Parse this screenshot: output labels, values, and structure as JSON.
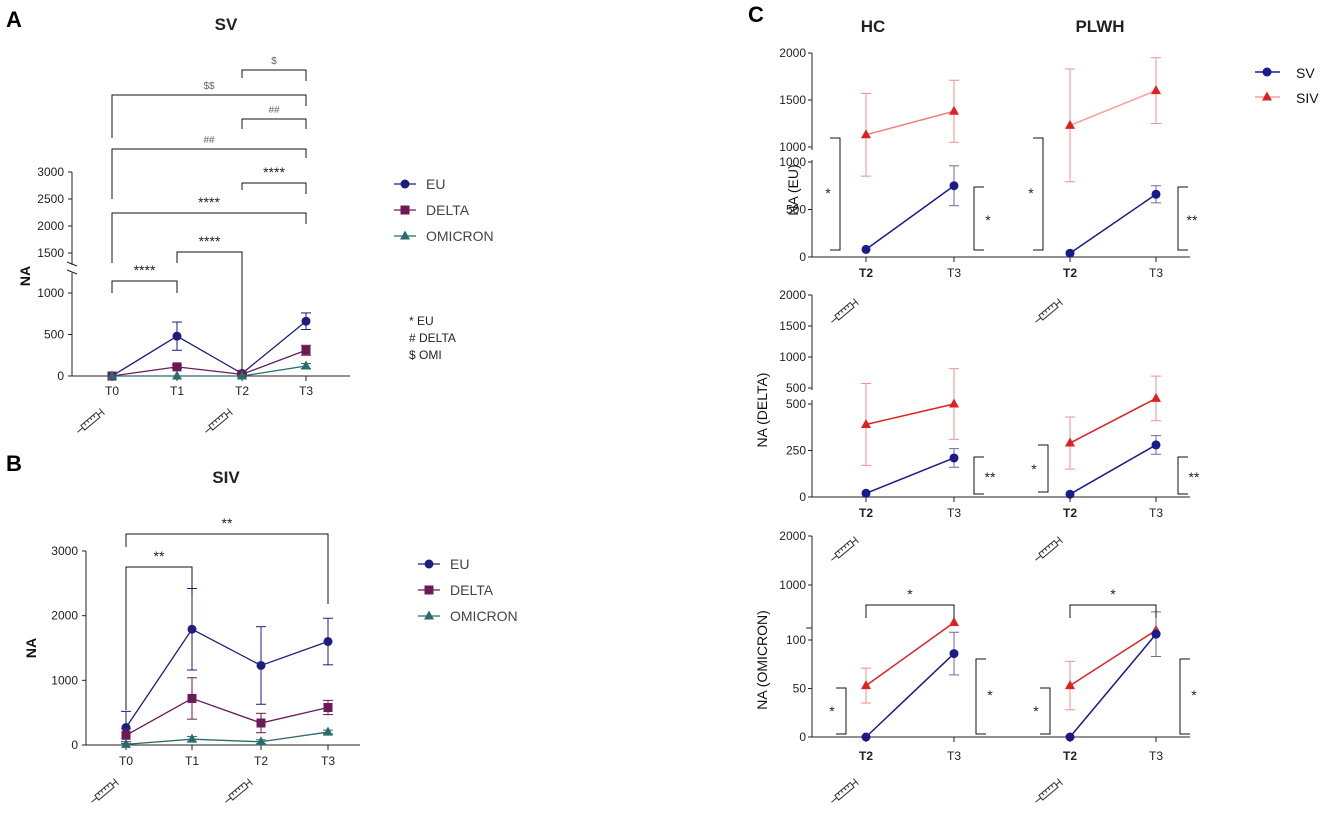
{
  "figure": {
    "panel_letters": [
      "A",
      "B",
      "C"
    ],
    "colors": {
      "eu": "#1e1e80",
      "delta": "#6b1a55",
      "omicron": "#2a6b6b",
      "sv": "#1a1a8c",
      "siv_hc": "#f08080",
      "siv_plwh_light": "#f4a0a0",
      "siv": "#e02020",
      "siv_bar": "#f09090"
    }
  },
  "chart_data": [
    {
      "id": "A",
      "type": "line",
      "title": "SV",
      "ylabel": "NA",
      "xlabel": "",
      "categories": [
        "T0",
        "T1",
        "T2",
        "T3"
      ],
      "vaccination_timepoints": [
        "T0",
        "T2"
      ],
      "y_broken_axis": true,
      "ylim_lower": [
        0,
        1200
      ],
      "ylim_upper": [
        1200,
        3000
      ],
      "yticks": [
        "0",
        "500",
        "1000",
        "1500",
        "2000",
        "2500",
        "3000"
      ],
      "series": [
        {
          "name": "EU",
          "marker": "circle",
          "values": [
            0,
            480,
            30,
            660
          ],
          "errors": [
            0,
            170,
            10,
            100
          ]
        },
        {
          "name": "DELTA",
          "marker": "square",
          "values": [
            0,
            110,
            20,
            310
          ],
          "errors": [
            0,
            20,
            8,
            60
          ]
        },
        {
          "name": "OMICRON",
          "marker": "triangle",
          "values": [
            0,
            0,
            0,
            120
          ],
          "errors": [
            0,
            0,
            0,
            30
          ]
        }
      ],
      "significance": [
        {
          "from": "T0",
          "to": "T1",
          "label": "****"
        },
        {
          "from": "T1",
          "to": "T2",
          "label": "****"
        },
        {
          "from": "T0",
          "to": "T3",
          "label": "****"
        },
        {
          "from": "T2",
          "to": "T3",
          "label": "****"
        },
        {
          "from": "T0",
          "to": "T3",
          "label": "##"
        },
        {
          "from": "T2",
          "to": "T3",
          "label": "##"
        },
        {
          "from": "T0",
          "to": "T3",
          "label": "$$"
        },
        {
          "from": "T2",
          "to": "T3",
          "label": "$"
        }
      ],
      "annotation_key": [
        "* EU",
        "# DELTA",
        "$ OMI"
      ]
    },
    {
      "id": "B",
      "type": "line",
      "title": "SIV",
      "ylabel": "NA",
      "xlabel": "",
      "categories": [
        "T0",
        "T1",
        "T2",
        "T3"
      ],
      "vaccination_timepoints": [
        "T0",
        "T2"
      ],
      "ylim": [
        0,
        3000
      ],
      "yticks": [
        "0",
        "1000",
        "2000",
        "3000"
      ],
      "series": [
        {
          "name": "EU",
          "marker": "circle",
          "values": [
            270,
            1790,
            1230,
            1600
          ],
          "errors": [
            250,
            630,
            600,
            360
          ]
        },
        {
          "name": "DELTA",
          "marker": "square",
          "values": [
            150,
            720,
            340,
            580
          ],
          "errors": [
            100,
            320,
            150,
            110
          ]
        },
        {
          "name": "OMICRON",
          "marker": "triangle",
          "values": [
            10,
            90,
            50,
            200
          ],
          "errors": [
            10,
            40,
            30,
            30
          ]
        }
      ],
      "significance": [
        {
          "from": "T0",
          "to": "T1",
          "label": "**"
        },
        {
          "from": "T0",
          "to": "T3",
          "label": "**"
        }
      ]
    },
    {
      "id": "C",
      "type": "line",
      "column_titles": [
        "HC",
        "PLWH"
      ],
      "legend": [
        "SV",
        "SIV"
      ],
      "categories": [
        "T2",
        "T3"
      ],
      "vaccination_timepoints": [
        "T2"
      ],
      "rows": [
        {
          "variant": "EU",
          "ylabel": "NA (EU)",
          "y_broken_axis": true,
          "yticks": [
            "0",
            "500",
            "1000",
            "1000",
            "1500",
            "2000"
          ],
          "panels": [
            {
              "group": "HC",
              "sv": [
                80,
                750
              ],
              "sv_err": [
                0,
                210
              ],
              "siv": [
                1130,
                1380
              ],
              "siv_err": [
                440,
                330
              ],
              "sig_sv_siv_T2": "*",
              "sig_sv_T2_T3": "*"
            },
            {
              "group": "PLWH",
              "sv": [
                40,
                660
              ],
              "sv_err": [
                0,
                90
              ],
              "siv": [
                1230,
                1600
              ],
              "siv_err": [
                600,
                350
              ],
              "sig_sv_siv_T2": "*",
              "sig_sv_T2_T3": "**"
            }
          ]
        },
        {
          "variant": "DELTA",
          "ylabel": "NA (DELTA)",
          "y_broken_axis": true,
          "yticks": [
            "0",
            "250",
            "500",
            "500",
            "1000",
            "1500",
            "2000"
          ],
          "panels": [
            {
              "group": "HC",
              "sv": [
                20,
                210
              ],
              "sv_err": [
                0,
                50
              ],
              "siv": [
                390,
                500
              ],
              "siv_err": [
                220,
                190
              ],
              "sig_sv_siv_T2": "",
              "sig_sv_T2_T3": "**"
            },
            {
              "group": "PLWH",
              "sv": [
                15,
                280
              ],
              "sv_err": [
                0,
                50
              ],
              "siv": [
                290,
                530
              ],
              "siv_err": [
                140,
                120
              ],
              "sig_sv_siv_T2": "*",
              "sig_sv_T2_T3": "**"
            }
          ]
        },
        {
          "variant": "OMICRON",
          "ylabel": "NA (OMICRON)",
          "y_broken_axis": true,
          "yticks": [
            "0",
            "50",
            "100",
            "1000",
            "2000"
          ],
          "panels": [
            {
              "group": "HC",
              "sv": [
                0,
                86
              ],
              "sv_err": [
                0,
                22
              ],
              "siv": [
                53,
                118
              ],
              "siv_err": [
                18,
                0
              ],
              "sig_sv_siv_T2": "*",
              "sig_siv_T2_T3": "*",
              "sig_sv_T2_T3": "*"
            },
            {
              "group": "PLWH",
              "sv": [
                0,
                106
              ],
              "sv_err": [
                0,
                23
              ],
              "siv": [
                53,
                110
              ],
              "siv_err": [
                25,
                0
              ],
              "sig_sv_siv_T2": "*",
              "sig_siv_T2_T3": "*",
              "sig_sv_T2_T3": "*"
            }
          ]
        }
      ]
    }
  ]
}
